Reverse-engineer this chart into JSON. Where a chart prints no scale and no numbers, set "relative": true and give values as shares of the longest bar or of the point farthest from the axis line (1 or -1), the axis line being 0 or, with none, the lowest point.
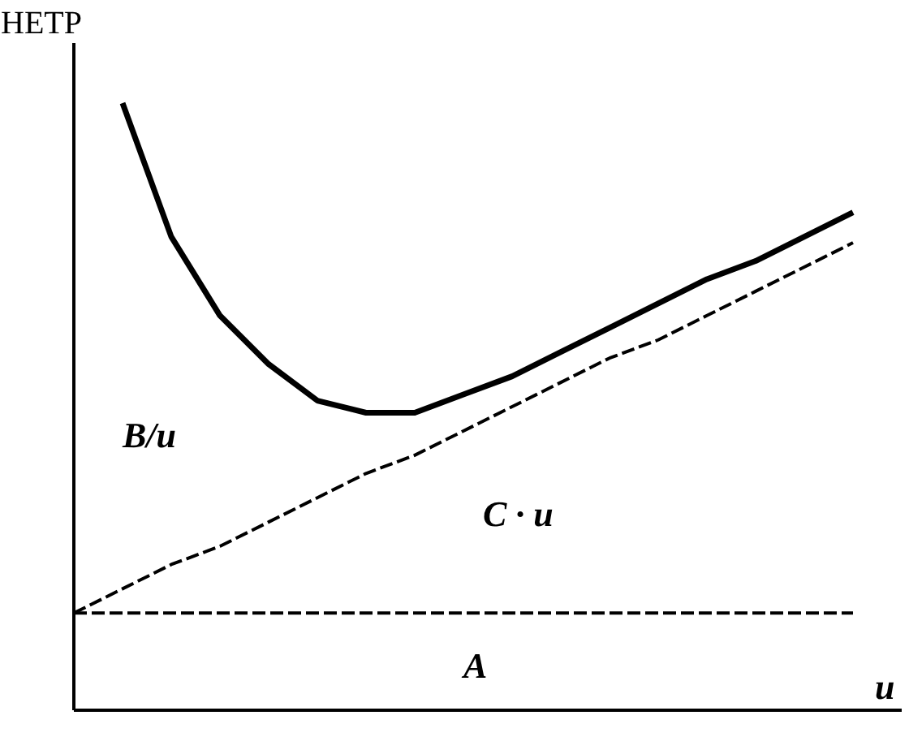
{
  "chart_data": {
    "type": "line",
    "relative": true,
    "xlabel": "u",
    "ylabel": "HETP",
    "categories": [
      null,
      null,
      null,
      null,
      null,
      null,
      null,
      null,
      null,
      null,
      null,
      null,
      null,
      null,
      null,
      null,
      null
    ],
    "series": [
      {
        "color": "#000000",
        "line_style": "solid",
        "values": [
          null,
          1.0,
          0.78,
          0.65,
          0.57,
          0.51,
          0.49,
          0.49,
          0.52,
          0.55,
          0.59,
          0.63,
          0.67,
          0.71,
          0.74,
          0.78,
          0.82
        ]
      },
      {
        "color": "#000000",
        "line_style": "dashed",
        "values": [
          0.16,
          0.2,
          0.24,
          0.27,
          0.31,
          0.35,
          0.39,
          0.42,
          0.46,
          0.5,
          0.54,
          0.58,
          0.61,
          0.65,
          0.69,
          0.73,
          0.77
        ]
      },
      {
        "color": "#000000",
        "line_style": "dashed",
        "values": [
          0.16,
          0.16,
          0.16,
          0.16,
          0.16,
          0.16,
          0.16,
          0.16,
          0.16,
          0.16,
          0.16,
          0.16,
          0.16,
          0.16,
          0.16,
          0.16,
          0.16
        ]
      }
    ],
    "annotations": [
      "B/u",
      "C · u",
      "A"
    ]
  }
}
